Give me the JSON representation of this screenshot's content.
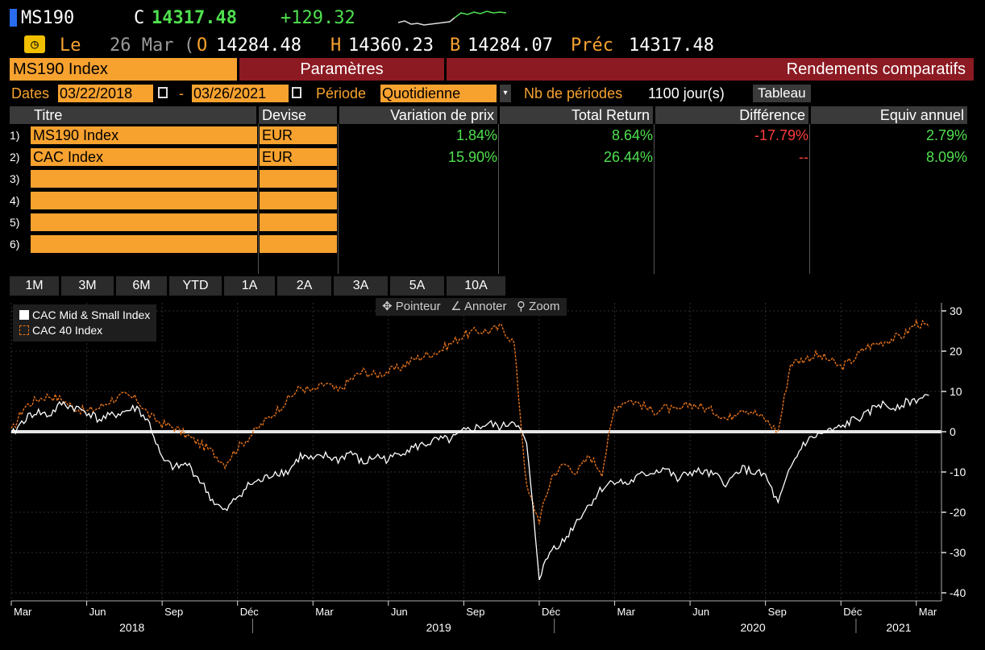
{
  "header": {
    "symbol": "MS190",
    "close_label": "C",
    "close_value": "14317.48",
    "change": "+129.32",
    "date_prefix": "Le",
    "date": "26 Mar",
    "date_trunc": "(",
    "open_label": "O",
    "open_value": "14284.48",
    "high_label": "H",
    "high_value": "14360.23",
    "bid_label": "B",
    "bid_value": "14284.07",
    "prev_label": "Préc",
    "prev_value": "14317.48"
  },
  "tabs": {
    "security": "MS190 Index",
    "params": "Paramètres",
    "returns": "Rendements comparatifs"
  },
  "dates": {
    "label": "Dates",
    "start": "03/22/2018",
    "dash": "-",
    "end": "03/26/2021",
    "period_label": "Période",
    "period_value": "Quotidienne",
    "nb_label": "Nb de périodes",
    "nb_value": "1100 jour(s)",
    "table_button": "Tableau"
  },
  "table": {
    "headers": [
      "Titre",
      "Devise",
      "Variation de prix",
      "Total Return",
      "Différence",
      "Equiv annuel"
    ],
    "rows": [
      {
        "num": "1)",
        "title": "MS190 Index",
        "currency": "EUR",
        "price_change": "1.84%",
        "total_return": "8.64%",
        "difference": "-17.79%",
        "annual": "2.79%"
      },
      {
        "num": "2)",
        "title": "CAC Index",
        "currency": "EUR",
        "price_change": "15.90%",
        "total_return": "26.44%",
        "difference": "--",
        "annual": "8.09%"
      },
      {
        "num": "3)",
        "title": "",
        "currency": "",
        "price_change": "",
        "total_return": "",
        "difference": "",
        "annual": ""
      },
      {
        "num": "4)",
        "title": "",
        "currency": "",
        "price_change": "",
        "total_return": "",
        "difference": "",
        "annual": ""
      },
      {
        "num": "5)",
        "title": "",
        "currency": "",
        "price_change": "",
        "total_return": "",
        "difference": "",
        "annual": ""
      },
      {
        "num": "6)",
        "title": "",
        "currency": "",
        "price_change": "",
        "total_return": "",
        "difference": "",
        "annual": ""
      }
    ]
  },
  "periods": [
    "1M",
    "3M",
    "6M",
    "YTD",
    "1A",
    "2A",
    "3A",
    "5A",
    "10A"
  ],
  "tools": {
    "pointer": "Pointeur",
    "annotate": "Annoter",
    "zoom": "Zoom"
  },
  "colors": {
    "orange": "#f7a22f",
    "green": "#4fe04f",
    "red": "#ff3b3b",
    "maroon": "#8c1a22",
    "series_white": "#ffffff",
    "series_orange": "#e0701a"
  },
  "chart_data": {
    "type": "line",
    "ylim": [
      -42,
      32
    ],
    "yticks": [
      30,
      20,
      10,
      0,
      -10,
      -20,
      -30,
      -40
    ],
    "month_ticks": [
      "Mar",
      "Jun",
      "Sep",
      "Déc",
      "Mar",
      "Jun",
      "Sep",
      "Déc",
      "Mar",
      "Jun",
      "Sep",
      "Déc",
      "Mar"
    ],
    "year_labels": [
      "2018",
      "2019",
      "2020",
      "2021"
    ],
    "series": [
      {
        "name": "CAC Mid & Small Index",
        "x": [
          0,
          0.5,
          1,
          1.5,
          2,
          2.5,
          3,
          3.5,
          4,
          4.5,
          5,
          5.5,
          6,
          6.5,
          7,
          7.5,
          8,
          8.5,
          9,
          9.5,
          10,
          10.5,
          11,
          11.5,
          12,
          12.5,
          13,
          13.5,
          14,
          14.5,
          15,
          15.5,
          16,
          16.5,
          17,
          17.5,
          18,
          18.5,
          19,
          19.5,
          20,
          20.5,
          21,
          21.5,
          22,
          22.5,
          23,
          23.5,
          24,
          24.5,
          25,
          25.5,
          26,
          26.5,
          27,
          27.5,
          28,
          28.5,
          29,
          29.5,
          30,
          30.5,
          31,
          31.5,
          32,
          32.5,
          33,
          33.5,
          34,
          34.5,
          35,
          35.5,
          36,
          36.5
        ],
        "y": [
          -1,
          3,
          5,
          4,
          7,
          6,
          5,
          3,
          4,
          5,
          6,
          2,
          -7,
          -9,
          -8,
          -12,
          -17,
          -20,
          -16,
          -13,
          -12,
          -10,
          -10,
          -6,
          -7,
          -6,
          -7,
          -5,
          -8,
          -6,
          -7,
          -5,
          -4,
          -3,
          -2,
          -2,
          0,
          1,
          2,
          1,
          3,
          -3,
          -36,
          -29,
          -27,
          -22,
          -18,
          -14,
          -12,
          -13,
          -11,
          -10,
          -9,
          -12,
          -10,
          -10,
          -11,
          -13,
          -9,
          -10,
          -11,
          -18,
          -9,
          -3,
          -1,
          0,
          1,
          3,
          4,
          7,
          6,
          7,
          8,
          9
        ]
      },
      {
        "name": "CAC 40 Index",
        "x": [
          0,
          0.5,
          1,
          1.5,
          2,
          2.5,
          3,
          3.5,
          4,
          4.5,
          5,
          5.5,
          6,
          6.5,
          7,
          7.5,
          8,
          8.5,
          9,
          9.5,
          10,
          10.5,
          11,
          11.5,
          12,
          12.5,
          13,
          13.5,
          14,
          14.5,
          15,
          15.5,
          16,
          16.5,
          17,
          17.5,
          18,
          18.5,
          19,
          19.5,
          20,
          20.5,
          21,
          21.5,
          22,
          22.5,
          23,
          23.5,
          24,
          24.5,
          25,
          25.5,
          26,
          26.5,
          27,
          27.5,
          28,
          28.5,
          29,
          29.5,
          30,
          30.5,
          31,
          31.5,
          32,
          32.5,
          33,
          33.5,
          34,
          34.5,
          35,
          35.5,
          36,
          36.5
        ],
        "y": [
          0,
          6,
          8,
          9,
          8,
          6,
          5,
          6,
          8,
          9,
          8,
          4,
          2,
          1,
          -1,
          -3,
          -5,
          -8,
          -4,
          -1,
          2,
          5,
          8,
          11,
          10,
          12,
          10,
          13,
          15,
          14,
          15,
          16,
          18,
          19,
          20,
          22,
          24,
          25,
          25,
          26,
          22,
          -14,
          -22,
          -11,
          -8,
          -10,
          -6,
          -10,
          6,
          8,
          7,
          5,
          6,
          5,
          7,
          6,
          5,
          3,
          6,
          5,
          3,
          0,
          17,
          18,
          19,
          18,
          16,
          18,
          21,
          22,
          23,
          24,
          27,
          26
        ]
      }
    ]
  }
}
